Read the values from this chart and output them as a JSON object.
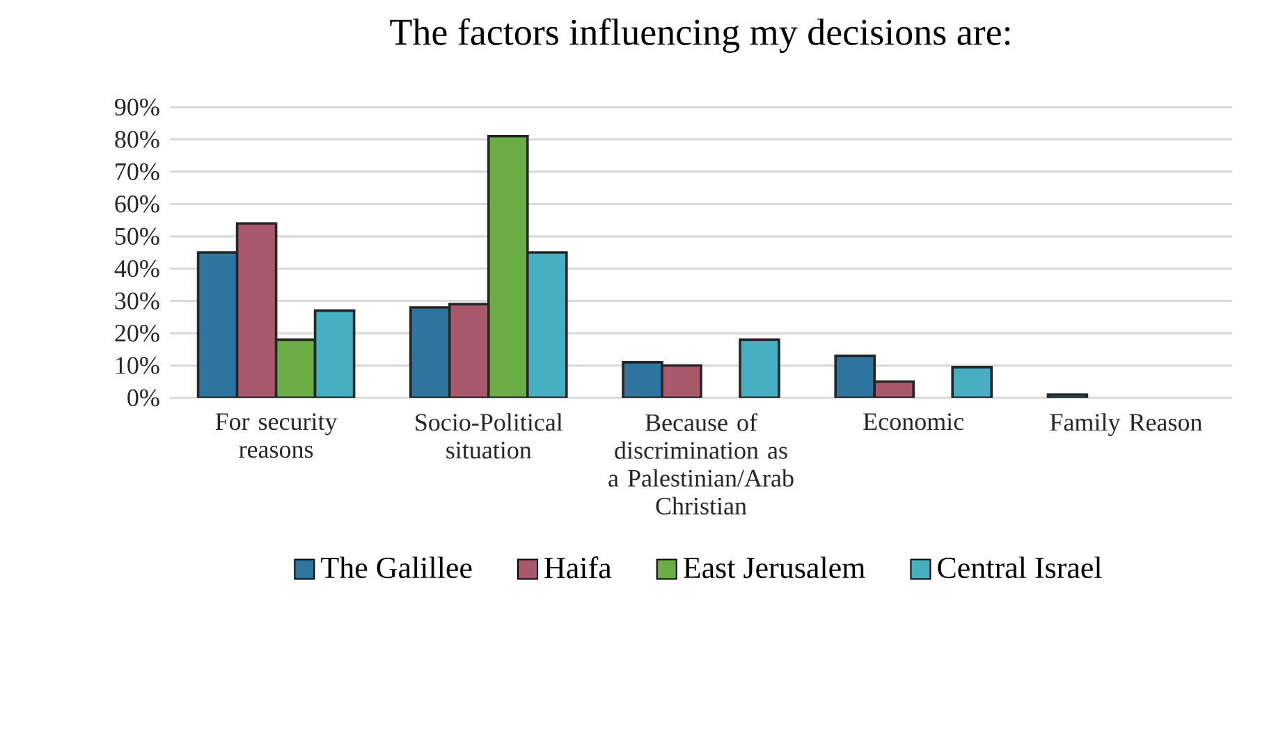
{
  "chart_data": {
    "type": "bar",
    "title": "The factors influencing my decisions are:",
    "categories": [
      "For security reasons",
      "Socio-Political situation",
      "Because of discrimination as a Palestinian/Arab Christian",
      "Economic",
      "Family Reason"
    ],
    "series": [
      {
        "name": "The Galillee",
        "color": "#2e75a0",
        "values": [
          45,
          28,
          11,
          13,
          1
        ]
      },
      {
        "name": "Haifa",
        "color": "#a9596b",
        "values": [
          54,
          29,
          10,
          5,
          null
        ]
      },
      {
        "name": "East Jerusalem",
        "color": "#6aad44",
        "values": [
          18,
          81,
          null,
          null,
          null
        ]
      },
      {
        "name": "Central Israel",
        "color": "#47afc2",
        "values": [
          27,
          45,
          18,
          9.5,
          null
        ]
      }
    ],
    "ylim": [
      0,
      90
    ],
    "yticks": [
      {
        "value": 0,
        "label": "0%"
      },
      {
        "value": 10,
        "label": "10%"
      },
      {
        "value": 20,
        "label": "20%"
      },
      {
        "value": 30,
        "label": "30%"
      },
      {
        "value": 40,
        "label": "40%"
      },
      {
        "value": 50,
        "label": "50%"
      },
      {
        "value": 60,
        "label": "60%"
      },
      {
        "value": 70,
        "label": "70%"
      },
      {
        "value": 80,
        "label": "80%"
      },
      {
        "value": 90,
        "label": "90%"
      }
    ],
    "grid": "y",
    "legend": "bottom"
  }
}
